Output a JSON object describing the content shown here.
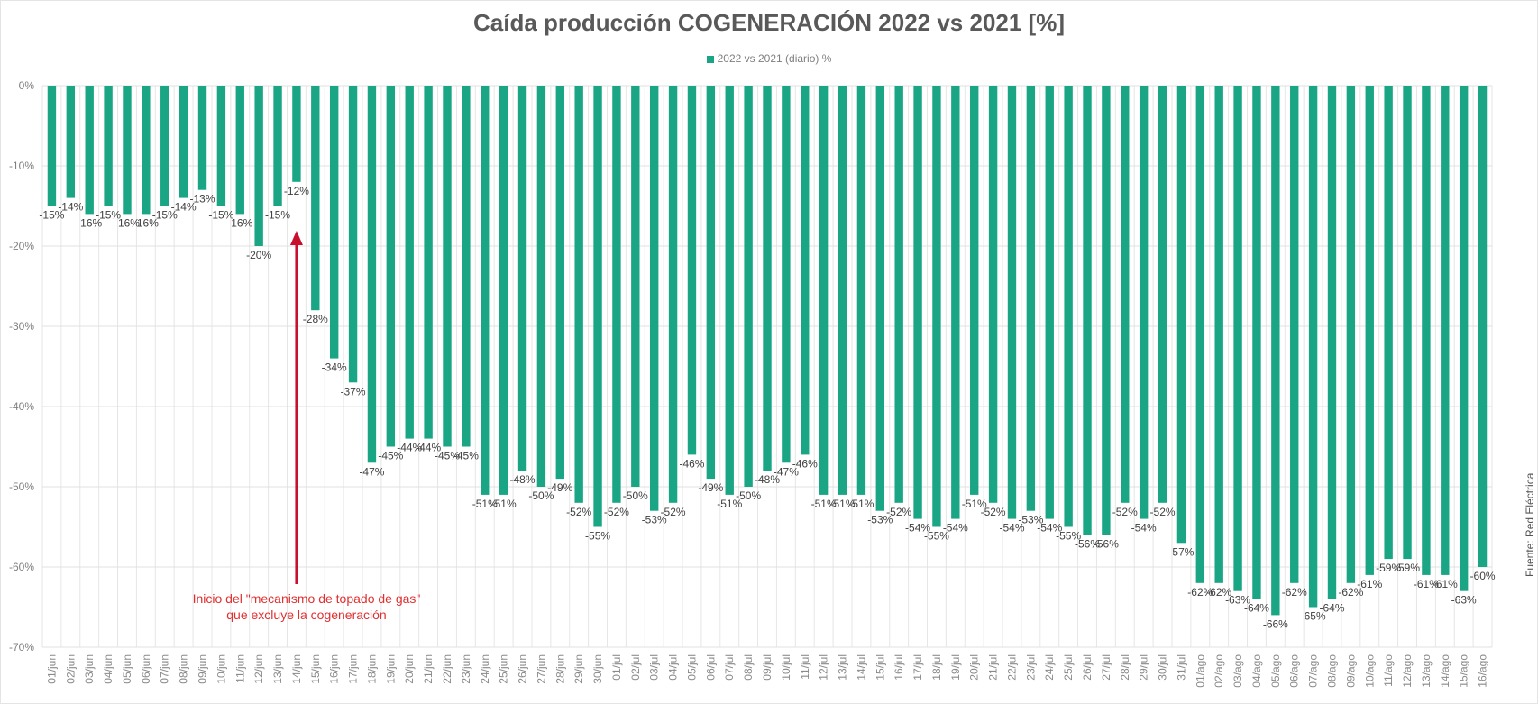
{
  "chart_data": {
    "type": "bar",
    "title": "Caída producción COGENERACIÓN 2022 vs 2021 [%]",
    "xlabel": "",
    "ylabel": "",
    "ylim": [
      -70,
      0
    ],
    "yticks": [
      "0%",
      "-10%",
      "-20%",
      "-30%",
      "-40%",
      "-50%",
      "-60%",
      "-70%"
    ],
    "grid": true,
    "legend_position": "top",
    "series": [
      {
        "name": "2022 vs 2021 (diario) %",
        "color": "#1aa685",
        "values": [
          -15,
          -14,
          -16,
          -15,
          -16,
          -16,
          -15,
          -14,
          -13,
          -15,
          -16,
          -20,
          -15,
          -12,
          -28,
          -34,
          -37,
          -47,
          -45,
          -44,
          -44,
          -45,
          -45,
          -51,
          -51,
          -48,
          -50,
          -49,
          -52,
          -55,
          -52,
          -50,
          -53,
          -52,
          -46,
          -49,
          -51,
          -50,
          -48,
          -47,
          -46,
          -51,
          -51,
          -51,
          -53,
          -52,
          -54,
          -55,
          -54,
          -51,
          -52,
          -54,
          -53,
          -54,
          -55,
          -56,
          -56,
          -52,
          -54,
          -52,
          -57,
          -62,
          -62,
          -63,
          -64,
          -66,
          -62,
          -65,
          -64,
          -62,
          -61,
          -59,
          -59,
          -61,
          -61,
          -63,
          -60
        ]
      }
    ],
    "categories": [
      "01/jun",
      "02/jun",
      "03/jun",
      "04/jun",
      "05/jun",
      "06/jun",
      "07/jun",
      "08/jun",
      "09/jun",
      "10/jun",
      "11/jun",
      "12/jun",
      "13/jun",
      "14/jun",
      "15/jun",
      "16/jun",
      "17/jun",
      "18/jun",
      "19/jun",
      "20/jun",
      "21/jun",
      "22/jun",
      "23/jun",
      "24/jun",
      "25/jun",
      "26/jun",
      "27/jun",
      "28/jun",
      "29/jun",
      "30/jun",
      "01/jul",
      "02/jul",
      "03/jul",
      "04/jul",
      "05/jul",
      "06/jul",
      "07/jul",
      "08/jul",
      "09/jul",
      "10/jul",
      "11/jul",
      "12/jul",
      "13/jul",
      "14/jul",
      "15/jul",
      "16/jul",
      "17/jul",
      "18/jul",
      "19/jul",
      "20/jul",
      "21/jul",
      "22/jul",
      "23/jul",
      "24/jul",
      "25/jul",
      "26/jul",
      "27/jul",
      "28/jul",
      "29/jul",
      "30/jul",
      "31/jul",
      "01/ago",
      "02/ago",
      "03/ago",
      "04/ago",
      "05/ago",
      "06/ago",
      "07/ago",
      "08/ago",
      "09/ago",
      "10/ago",
      "11/ago",
      "12/ago",
      "13/ago",
      "14/ago",
      "15/ago",
      "16/ago"
    ],
    "annotations": [
      {
        "text_line1": "Inicio del \"mecanismo  de topado de gas\"",
        "text_line2": "que excluye la cogeneración",
        "points_to": "14/jun",
        "color": "#e03030"
      }
    ],
    "source": "Fuente: Red Eléctrica"
  },
  "title": "Caída producción COGENERACIÓN 2022 vs 2021 [%]",
  "legend": {
    "label": "2022 vs 2021 (diario) %"
  },
  "annotation": {
    "line1": "Inicio del \"mecanismo  de topado de gas\"",
    "line2": "que excluye la cogeneración"
  },
  "source": "Fuente: Red Eléctrica"
}
